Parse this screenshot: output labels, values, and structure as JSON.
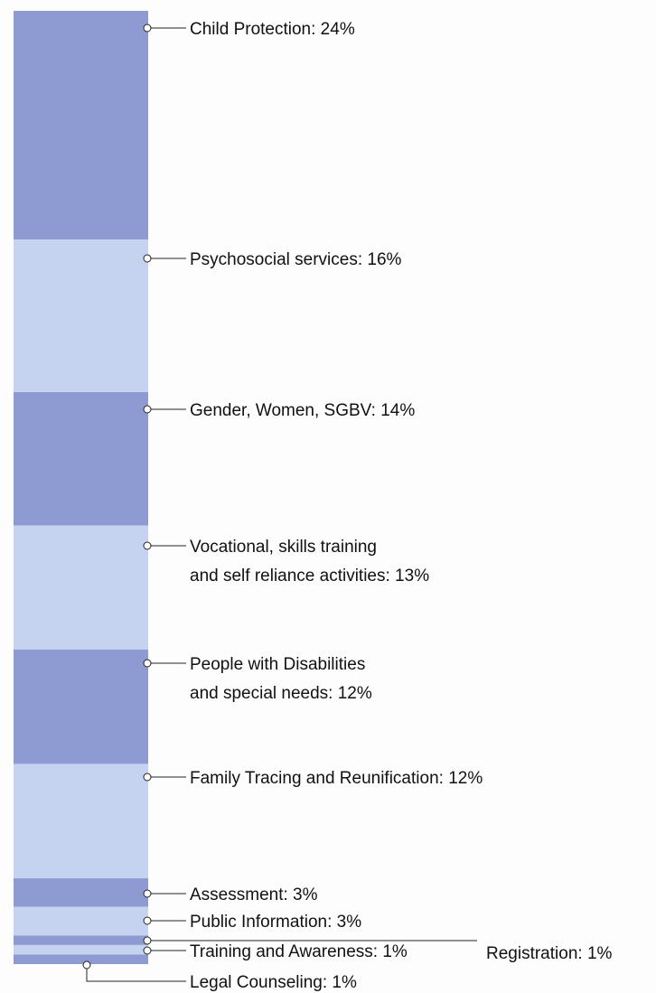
{
  "chart_data": {
    "type": "bar",
    "orientation": "stacked-vertical",
    "unit": "%",
    "colors": [
      "#8e9bd2",
      "#c6d3f0"
    ],
    "categories": [
      {
        "name": "Child Protection",
        "value": 24,
        "lines": [
          "Child Protection: 24%"
        ]
      },
      {
        "name": "Psychosocial services",
        "value": 16,
        "lines": [
          "Psychosocial services: 16%"
        ]
      },
      {
        "name": "Gender, Women, SGBV",
        "value": 14,
        "lines": [
          "Gender, Women, SGBV: 14%"
        ]
      },
      {
        "name": "Vocational, skills training and self reliance activities",
        "value": 13,
        "lines": [
          "Vocational, skills training",
          "and self reliance activities: 13%"
        ]
      },
      {
        "name": "People with Disabilities and special needs",
        "value": 12,
        "lines": [
          "People with Disabilities",
          "and special needs: 12%"
        ]
      },
      {
        "name": "Family Tracing and Reunification",
        "value": 12,
        "lines": [
          "Family Tracing and Reunification: 12%"
        ]
      },
      {
        "name": "Assessment",
        "value": 3,
        "lines": [
          "Assessment: 3%"
        ]
      },
      {
        "name": "Public Information",
        "value": 3,
        "lines": [
          "Public Information: 3%"
        ]
      },
      {
        "name": "Registration",
        "value": 1,
        "lines": [
          "Registration: 1%"
        ]
      },
      {
        "name": "Training and Awareness",
        "value": 1,
        "lines": [
          "Training and Awareness: 1%"
        ]
      },
      {
        "name": "Legal Counseling",
        "value": 1,
        "lines": [
          "Legal Counseling: 1%"
        ]
      }
    ]
  }
}
